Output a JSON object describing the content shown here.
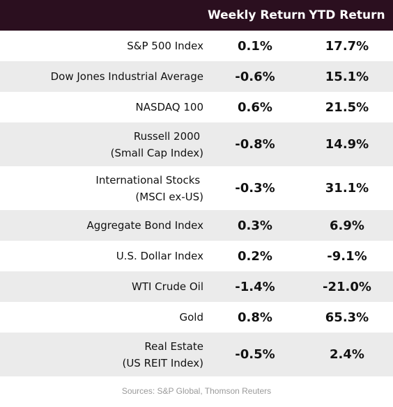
{
  "header": {
    "weekly_label": "Weekly Return",
    "ytd_label": "YTD Return",
    "background": "#2b0f1f"
  },
  "rows": [
    {
      "name_lines": [
        "S&P 500 Index"
      ],
      "weekly": "0.1%",
      "ytd": "17.7%"
    },
    {
      "name_lines": [
        "Dow Jones Industrial Average"
      ],
      "weekly": "-0.6%",
      "ytd": "15.1%"
    },
    {
      "name_lines": [
        "NASDAQ 100"
      ],
      "weekly": "0.6%",
      "ytd": "21.5%"
    },
    {
      "name_lines": [
        "Russell 2000 ",
        "(Small Cap Index)"
      ],
      "weekly": "-0.8%",
      "ytd": "14.9%"
    },
    {
      "name_lines": [
        "International Stocks ",
        "(MSCI ex-US)"
      ],
      "weekly": "-0.3%",
      "ytd": "31.1%"
    },
    {
      "name_lines": [
        "Aggregate Bond Index"
      ],
      "weekly": "0.3%",
      "ytd": "6.9%"
    },
    {
      "name_lines": [
        "U.S. Dollar Index"
      ],
      "weekly": "0.2%",
      "ytd": "-9.1%"
    },
    {
      "name_lines": [
        "WTI Crude Oil"
      ],
      "weekly": "-1.4%",
      "ytd": "-21.0%"
    },
    {
      "name_lines": [
        "Gold"
      ],
      "weekly": "0.8%",
      "ytd": "65.3%"
    },
    {
      "name_lines": [
        "Real Estate",
        "(US REIT Index)"
      ],
      "weekly": "-0.5%",
      "ytd": "2.4%"
    }
  ],
  "footer": {
    "source": "Sources: S&P Global, Thomson Reuters"
  },
  "colors": {
    "row_shade": "#ebebeb",
    "row_plain": "#ffffff"
  }
}
